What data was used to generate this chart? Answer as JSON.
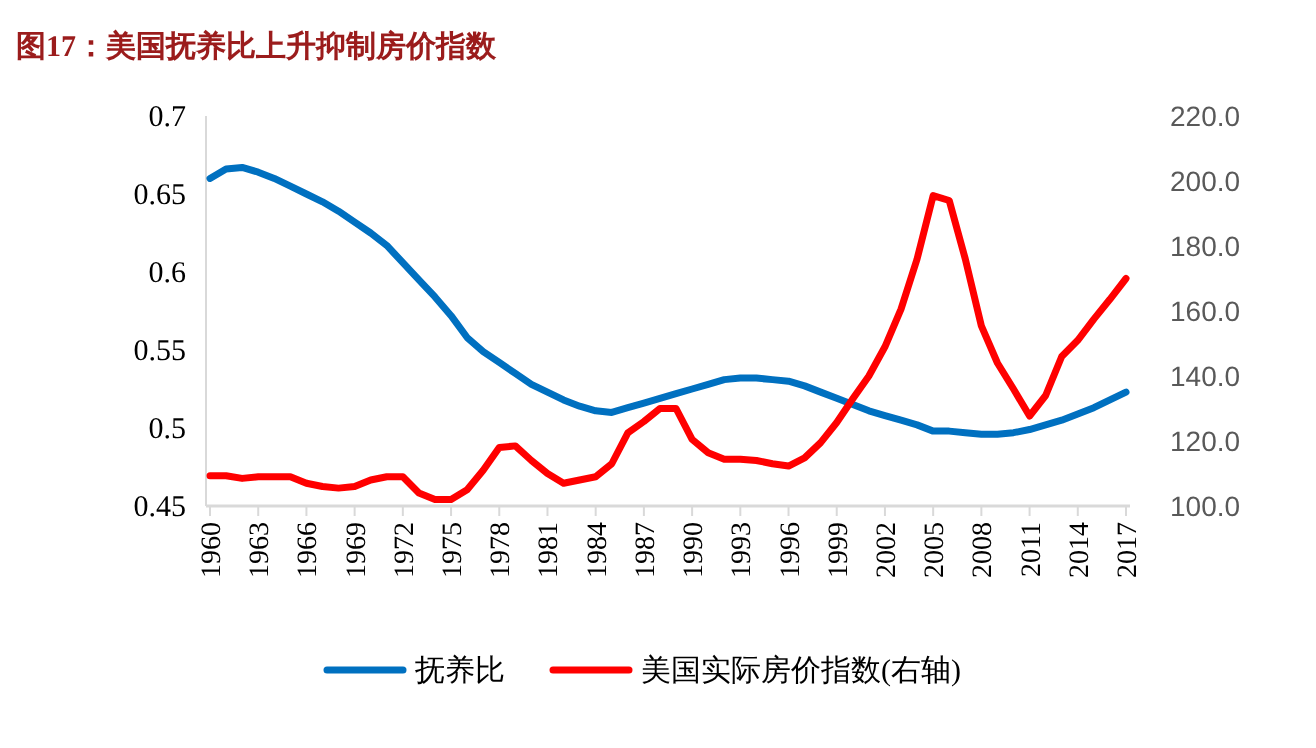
{
  "chart_data": {
    "type": "line",
    "title": "图17：美国抚养比上升抑制房价指数",
    "x": [
      1960,
      1961,
      1962,
      1963,
      1964,
      1965,
      1966,
      1967,
      1968,
      1969,
      1970,
      1971,
      1972,
      1973,
      1974,
      1975,
      1976,
      1977,
      1978,
      1979,
      1980,
      1981,
      1982,
      1983,
      1984,
      1985,
      1986,
      1987,
      1988,
      1989,
      1990,
      1991,
      1992,
      1993,
      1994,
      1995,
      1996,
      1997,
      1998,
      1999,
      2000,
      2001,
      2002,
      2003,
      2004,
      2005,
      2006,
      2007,
      2008,
      2009,
      2010,
      2011,
      2012,
      2013,
      2014,
      2015,
      2016,
      2017
    ],
    "series": [
      {
        "name": "抚养比",
        "color": "#0070c0",
        "values": [
          0.66,
          0.666,
          0.667,
          0.664,
          0.66,
          0.655,
          0.65,
          0.645,
          0.639,
          0.632,
          0.625,
          0.617,
          0.606,
          0.595,
          0.584,
          0.572,
          0.558,
          0.549,
          0.542,
          0.535,
          0.528,
          0.523,
          0.518,
          0.514,
          0.511,
          0.51,
          0.513,
          0.516,
          0.519,
          0.522,
          0.525,
          0.528,
          0.531,
          0.532,
          0.532,
          0.531,
          0.53,
          0.527,
          0.523,
          0.519,
          0.515,
          0.511,
          0.508,
          0.505,
          0.502,
          0.498,
          0.498,
          0.497,
          0.496,
          0.496,
          0.497,
          0.499,
          0.502,
          0.505,
          0.509,
          0.513,
          0.518,
          0.523
        ]
      },
      {
        "name": "美国实际房价指数(右轴)",
        "color": "#ff0000",
        "axis": "y2",
        "values": [
          109.3,
          109.3,
          108.5,
          109,
          109,
          109,
          107,
          106,
          105.5,
          106,
          108,
          109,
          109,
          104,
          102,
          102,
          105,
          111,
          118,
          118.5,
          114,
          110,
          107,
          108,
          109,
          113,
          122.5,
          126,
          130,
          130,
          120.5,
          116.4,
          114.4,
          114.4,
          114,
          113,
          112.3,
          114.8,
          119.5,
          125.7,
          133,
          140,
          149,
          160.6,
          176,
          195.5,
          194,
          176,
          155.4,
          144,
          136,
          127.7,
          134,
          146,
          151,
          157.5,
          163.6,
          170
        ]
      }
    ],
    "xlim": [
      1960,
      2017
    ],
    "xticks": [
      1960,
      1963,
      1966,
      1969,
      1972,
      1975,
      1978,
      1981,
      1984,
      1987,
      1990,
      1993,
      1996,
      1999,
      2002,
      2005,
      2008,
      2011,
      2014,
      2017
    ],
    "ylim": [
      0.45,
      0.7
    ],
    "yticks": [
      0.45,
      0.5,
      0.55,
      0.6,
      0.65,
      0.7
    ],
    "y2lim": [
      100,
      220
    ],
    "y2ticks": [
      {
        "value": 100,
        "label": "100.0"
      },
      {
        "value": 120,
        "label": "120.0"
      },
      {
        "value": 140,
        "label": "140.0"
      },
      {
        "value": 160,
        "label": "160.0"
      },
      {
        "value": 180,
        "label": "180.0"
      },
      {
        "value": 200,
        "label": "200.0"
      },
      {
        "value": 220,
        "label": "220.0"
      }
    ],
    "legend": "bottom",
    "grid": false
  }
}
